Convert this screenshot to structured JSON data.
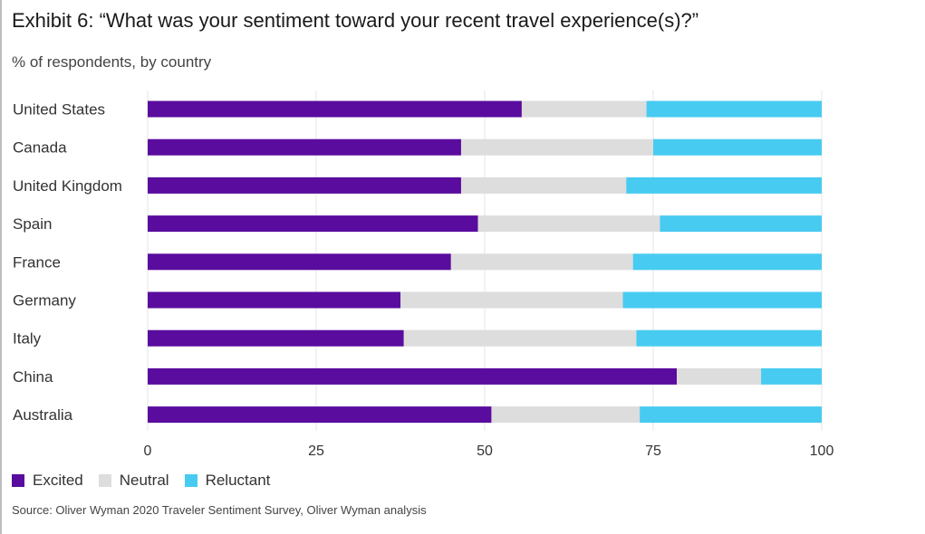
{
  "title": "Exhibit 6: “What was your sentiment toward your recent travel experience(s)?”",
  "subtitle": "% of respondents, by country",
  "source": "Source: Oliver Wyman 2020 Traveler Sentiment Survey, Oliver Wyman analysis",
  "colors": {
    "excited": "#5a0c9e",
    "neutral": "#dddddd",
    "reluctant": "#48cbf1",
    "grid": "#e4e4e4"
  },
  "chart_data": {
    "type": "bar",
    "orientation": "horizontal",
    "stacked": true,
    "categories": [
      "United States",
      "Canada",
      "United Kingdom",
      "Spain",
      "France",
      "Germany",
      "Italy",
      "China",
      "Australia"
    ],
    "series": [
      {
        "name": "Excited",
        "values": [
          55.5,
          46.5,
          46.5,
          49,
          45,
          37.5,
          38,
          78.5,
          51
        ]
      },
      {
        "name": "Neutral",
        "values": [
          18.5,
          28.5,
          24.5,
          27,
          27,
          33,
          34.5,
          12.5,
          22
        ]
      },
      {
        "name": "Reluctant",
        "values": [
          26,
          25,
          29,
          24,
          28,
          29.5,
          27.5,
          9,
          27
        ]
      }
    ],
    "xlim": [
      0,
      100
    ],
    "xticks": [
      0,
      25,
      50,
      75,
      100
    ],
    "xlabel": "",
    "ylabel": "",
    "grid": true,
    "legend_position": "bottom-left"
  }
}
